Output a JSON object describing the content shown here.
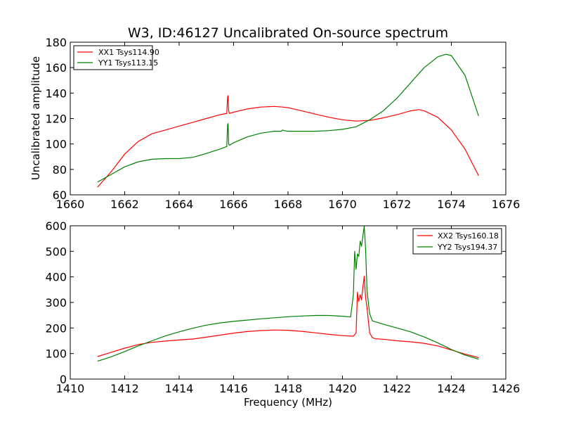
{
  "chart_data": [
    {
      "type": "line",
      "title": "W3, ID:46127 Uncalibrated On-source spectrum",
      "xlabel": "",
      "ylabel": "Uncalibrated amplitude",
      "xlim": [
        1660,
        1676
      ],
      "ylim": [
        60,
        180
      ],
      "xticks": [
        1660,
        1662,
        1664,
        1666,
        1668,
        1670,
        1672,
        1674,
        1676
      ],
      "yticks": [
        60,
        80,
        100,
        120,
        140,
        160,
        180
      ],
      "legend_position": "top-left",
      "series": [
        {
          "name": "XX1 Tsys114.90",
          "color": "#ff0000",
          "x": [
            1661.0,
            1661.5,
            1662.0,
            1662.5,
            1663.0,
            1663.5,
            1664.0,
            1664.5,
            1665.0,
            1665.5,
            1665.75,
            1665.78,
            1665.8,
            1665.82,
            1665.85,
            1666.0,
            1666.5,
            1667.0,
            1667.5,
            1667.8,
            1668.0,
            1668.5,
            1669.0,
            1669.5,
            1670.0,
            1670.5,
            1671.0,
            1671.5,
            1672.0,
            1672.5,
            1672.8,
            1673.0,
            1673.5,
            1674.0,
            1674.5,
            1675.0
          ],
          "y": [
            66,
            78,
            92,
            102,
            108,
            111,
            114,
            117,
            120,
            123,
            124,
            137,
            138,
            126,
            124,
            125,
            127.5,
            129,
            129.5,
            129,
            128.5,
            126,
            123.5,
            121,
            119,
            118,
            118.5,
            120.5,
            123,
            126,
            127,
            126,
            121,
            111,
            96,
            75
          ]
        },
        {
          "name": "YY1 Tsys113.15",
          "color": "#008000",
          "x": [
            1661.0,
            1661.5,
            1662.0,
            1662.5,
            1663.0,
            1663.5,
            1664.0,
            1664.5,
            1665.0,
            1665.5,
            1665.75,
            1665.78,
            1665.8,
            1665.82,
            1665.85,
            1666.0,
            1666.5,
            1667.0,
            1667.5,
            1667.75,
            1667.8,
            1667.85,
            1668.0,
            1668.5,
            1669.0,
            1669.5,
            1670.0,
            1670.5,
            1671.0,
            1671.5,
            1672.0,
            1672.5,
            1673.0,
            1673.5,
            1673.8,
            1674.0,
            1674.5,
            1675.0
          ],
          "y": [
            70,
            76,
            82,
            86,
            88,
            88.5,
            88.5,
            89.5,
            92.5,
            96,
            98,
            115,
            116,
            100,
            99,
            101,
            105.5,
            108.5,
            110,
            110,
            111,
            110.5,
            110,
            110,
            110,
            110.5,
            111.5,
            113.5,
            119,
            126,
            136,
            148,
            160,
            168.5,
            170.5,
            169.5,
            154,
            122
          ]
        }
      ]
    },
    {
      "type": "line",
      "title": "",
      "xlabel": "Frequency (MHz)",
      "ylabel": "",
      "xlim": [
        1410,
        1426
      ],
      "ylim": [
        0,
        600
      ],
      "xticks": [
        1410,
        1412,
        1414,
        1416,
        1418,
        1420,
        1422,
        1424,
        1426
      ],
      "yticks": [
        0,
        100,
        200,
        300,
        400,
        500,
        600
      ],
      "legend_position": "top-right",
      "series": [
        {
          "name": "XX2 Tsys160.18",
          "color": "#ff0000",
          "x": [
            1411.0,
            1411.5,
            1412.0,
            1412.5,
            1413.0,
            1413.5,
            1414.0,
            1414.5,
            1415.0,
            1415.5,
            1416.0,
            1416.5,
            1417.0,
            1417.5,
            1418.0,
            1418.5,
            1419.0,
            1419.5,
            1420.0,
            1420.4,
            1420.5,
            1420.55,
            1420.6,
            1420.65,
            1420.7,
            1420.75,
            1420.8,
            1420.85,
            1420.9,
            1420.95,
            1421.0,
            1421.1,
            1421.2,
            1421.5,
            1422.0,
            1422.5,
            1423.0,
            1423.5,
            1424.0,
            1424.5,
            1425.0
          ],
          "y": [
            88,
            105,
            121,
            135,
            144,
            149,
            153,
            157,
            164,
            172,
            180,
            186,
            190,
            192,
            191,
            187,
            181,
            175,
            170,
            168,
            180,
            340,
            305,
            330,
            310,
            360,
            402,
            320,
            280,
            230,
            180,
            162,
            158,
            156,
            150,
            146,
            140,
            130,
            114,
            98,
            84
          ]
        },
        {
          "name": "YY2 Tsys194.37",
          "color": "#008000",
          "x": [
            1411.0,
            1411.5,
            1412.0,
            1412.5,
            1413.0,
            1413.5,
            1414.0,
            1414.5,
            1415.0,
            1415.5,
            1416.0,
            1416.5,
            1417.0,
            1417.5,
            1418.0,
            1418.5,
            1419.0,
            1419.5,
            1420.0,
            1420.3,
            1420.4,
            1420.45,
            1420.5,
            1420.55,
            1420.6,
            1420.65,
            1420.7,
            1420.75,
            1420.8,
            1420.85,
            1420.9,
            1420.95,
            1421.0,
            1421.1,
            1421.5,
            1422.0,
            1422.5,
            1423.0,
            1423.5,
            1424.0,
            1424.5,
            1425.0
          ],
          "y": [
            70,
            87,
            108,
            130,
            150,
            169,
            185,
            199,
            211,
            220,
            226,
            231,
            236,
            240,
            244,
            247,
            249,
            249,
            246,
            243,
            330,
            500,
            430,
            490,
            480,
            540,
            520,
            560,
            598,
            510,
            350,
            300,
            255,
            228,
            215,
            200,
            185,
            165,
            142,
            116,
            94,
            78
          ]
        }
      ]
    }
  ]
}
